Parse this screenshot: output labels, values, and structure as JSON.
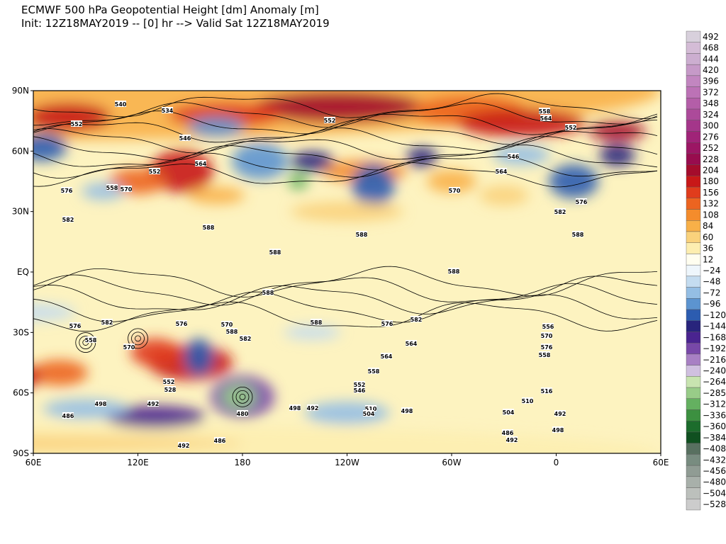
{
  "header": {
    "title": "ECMWF 500 hPa Geopotential Height [dm] Anomaly [m]",
    "subtitle": "Init: 12Z18MAY2019 -- [0] hr --> Valid Sat 12Z18MAY2019"
  },
  "map": {
    "lat_labels": [
      "90N",
      "60N",
      "30N",
      "EQ",
      "30S",
      "60S",
      "90S"
    ],
    "lon_labels": [
      "60E",
      "120E",
      "180",
      "120W",
      "60W",
      "0",
      "60E"
    ],
    "contour_labels": [
      "540",
      "534",
      "552",
      "546",
      "552",
      "564",
      "576",
      "558",
      "570",
      "582",
      "588",
      "552",
      "558",
      "564",
      "552",
      "546",
      "564",
      "570",
      "576",
      "582",
      "588",
      "588",
      "588",
      "588",
      "588",
      "576",
      "582",
      "558",
      "570",
      "588",
      "582",
      "576",
      "570",
      "564",
      "558",
      "588",
      "576",
      "564",
      "556",
      "582",
      "570",
      "576",
      "558",
      "552",
      "528",
      "498",
      "492",
      "486",
      "480",
      "498",
      "492",
      "552",
      "546",
      "510",
      "504",
      "498",
      "516",
      "510",
      "504",
      "498",
      "492",
      "486",
      "492",
      "486",
      "492"
    ]
  },
  "colorbar": {
    "labels": [
      "492",
      "468",
      "444",
      "420",
      "396",
      "372",
      "348",
      "324",
      "300",
      "276",
      "252",
      "228",
      "204",
      "180",
      "156",
      "132",
      "108",
      "84",
      "60",
      "36",
      "12",
      "−24",
      "−48",
      "−72",
      "−96",
      "−120",
      "−144",
      "−168",
      "−192",
      "−216",
      "−240",
      "−264",
      "−285",
      "−312",
      "−336",
      "−360",
      "−384",
      "−408",
      "−432",
      "−456",
      "−480",
      "−504",
      "−528"
    ],
    "colors": [
      "#d8d0dc",
      "#d4bcd6",
      "#ccaed0",
      "#c69ac8",
      "#c286c0",
      "#bc72b6",
      "#b45ea8",
      "#ac4a9a",
      "#a4368a",
      "#a02478",
      "#9c1664",
      "#980c4e",
      "#a40c2c",
      "#c81818",
      "#e03c1c",
      "#ec6420",
      "#f48c2c",
      "#f8b048",
      "#fad27c",
      "#fdeeb0",
      "#fffef0",
      "#eef6fc",
      "#c4dcf0",
      "#94bee4",
      "#5c94d0",
      "#2c5cb0",
      "#28247c",
      "#4a2490",
      "#7848a8",
      "#a880c4",
      "#d0c0e0",
      "#c8e4b0",
      "#98cc88",
      "#64b060",
      "#3c9040",
      "#1c6c2c",
      "#105020",
      "#587060",
      "#788c80",
      "#909c94",
      "#a8b0aa",
      "#bcc0bc",
      "#cccccc"
    ]
  }
}
